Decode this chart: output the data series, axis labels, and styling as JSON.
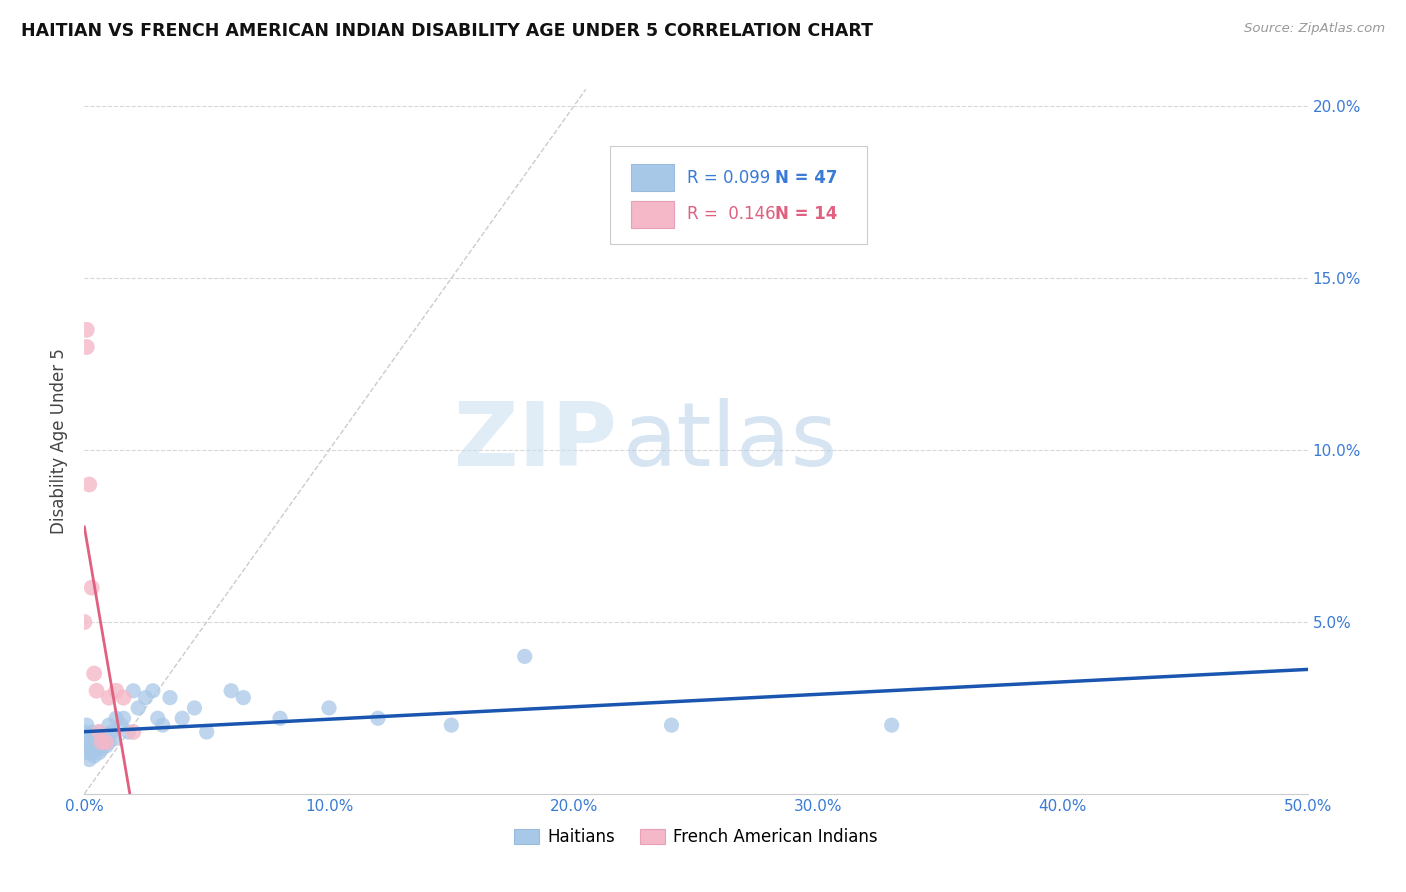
{
  "title": "HAITIAN VS FRENCH AMERICAN INDIAN DISABILITY AGE UNDER 5 CORRELATION CHART",
  "source": "Source: ZipAtlas.com",
  "ylabel": "Disability Age Under 5",
  "xlim": [
    0.0,
    0.5
  ],
  "ylim": [
    0.0,
    0.205
  ],
  "xticks": [
    0.0,
    0.1,
    0.2,
    0.3,
    0.4,
    0.5
  ],
  "yticks": [
    0.05,
    0.1,
    0.15,
    0.2
  ],
  "ytick_labels": [
    "5.0%",
    "10.0%",
    "15.0%",
    "20.0%"
  ],
  "xtick_labels": [
    "0.0%",
    "10.0%",
    "20.0%",
    "30.0%",
    "40.0%",
    "50.0%"
  ],
  "haitian_color": "#a8c8e8",
  "french_color": "#f4b8c8",
  "haitian_line_color": "#1a56b0",
  "french_line_color": "#e06080",
  "legend_R_haitian": "0.099",
  "legend_N_haitian": "47",
  "legend_R_french": "0.146",
  "legend_N_french": "14",
  "watermark_zip": "ZIP",
  "watermark_atlas": "atlas",
  "haitian_scatter_x": [
    0.0,
    0.001,
    0.001,
    0.001,
    0.002,
    0.002,
    0.002,
    0.003,
    0.003,
    0.003,
    0.004,
    0.004,
    0.005,
    0.005,
    0.006,
    0.006,
    0.007,
    0.007,
    0.008,
    0.009,
    0.01,
    0.01,
    0.011,
    0.012,
    0.013,
    0.015,
    0.016,
    0.018,
    0.02,
    0.022,
    0.025,
    0.028,
    0.03,
    0.032,
    0.035,
    0.04,
    0.045,
    0.05,
    0.06,
    0.065,
    0.08,
    0.1,
    0.12,
    0.15,
    0.18,
    0.24,
    0.33
  ],
  "haitian_scatter_y": [
    0.018,
    0.015,
    0.012,
    0.02,
    0.016,
    0.013,
    0.01,
    0.018,
    0.014,
    0.012,
    0.016,
    0.011,
    0.015,
    0.013,
    0.018,
    0.012,
    0.016,
    0.013,
    0.015,
    0.014,
    0.02,
    0.015,
    0.018,
    0.016,
    0.022,
    0.02,
    0.022,
    0.018,
    0.03,
    0.025,
    0.028,
    0.03,
    0.022,
    0.02,
    0.028,
    0.022,
    0.025,
    0.018,
    0.03,
    0.028,
    0.022,
    0.025,
    0.022,
    0.02,
    0.04,
    0.02,
    0.02
  ],
  "french_scatter_x": [
    0.0,
    0.001,
    0.001,
    0.002,
    0.003,
    0.004,
    0.005,
    0.006,
    0.007,
    0.009,
    0.01,
    0.013,
    0.016,
    0.02
  ],
  "french_scatter_y": [
    0.05,
    0.135,
    0.13,
    0.09,
    0.06,
    0.035,
    0.03,
    0.018,
    0.015,
    0.015,
    0.028,
    0.03,
    0.028,
    0.018
  ],
  "french_line_x0": 0.0,
  "french_line_x1": 0.022,
  "haitian_line_x0": 0.0,
  "haitian_line_x1": 0.5
}
